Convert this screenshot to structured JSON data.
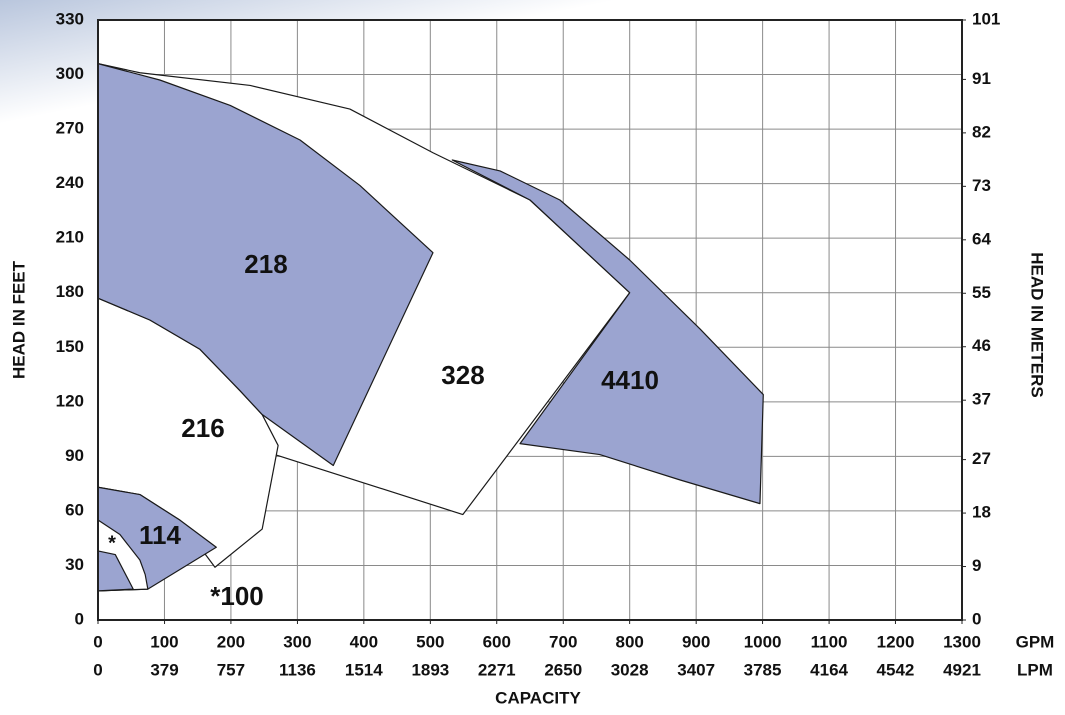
{
  "chart_data": {
    "type": "region",
    "xlabel": "CAPACITY",
    "ylabel": "HEAD IN FEET",
    "y2label": "HEAD IN METERS",
    "xunit": "GPM",
    "x2unit": "LPM",
    "xlim": [
      0,
      1300
    ],
    "xticks": [
      0,
      100,
      200,
      300,
      400,
      500,
      600,
      700,
      800,
      900,
      1000,
      1100,
      1200,
      1300
    ],
    "x2lim": [
      0,
      4921
    ],
    "x2ticks": [
      0,
      379,
      757,
      1136,
      1514,
      1893,
      2271,
      2650,
      3028,
      3407,
      3785,
      4164,
      4542,
      4921
    ],
    "ylim": [
      0,
      330
    ],
    "yticks": [
      0,
      30,
      60,
      90,
      120,
      150,
      180,
      210,
      240,
      270,
      300,
      330
    ],
    "y2lim": [
      0,
      101
    ],
    "y2ticks": [
      0,
      9,
      18,
      27,
      37,
      46,
      55,
      64,
      73,
      82,
      91,
      101
    ],
    "grid": true,
    "series": [
      {
        "name": "328",
        "color": "#ffffff",
        "x": [
          0,
          63,
          229,
          379,
          504,
          650,
          800,
          549,
          266,
          247
        ],
        "y": [
          306,
          301,
          294,
          281,
          257,
          231,
          180,
          58,
          91,
          113
        ]
      },
      {
        "name": "216",
        "color": "#ffffff",
        "x": [
          0,
          78,
          153,
          214,
          247,
          271,
          247,
          176,
          123,
          63,
          0
        ],
        "y": [
          177,
          165,
          149,
          126,
          113,
          96,
          50,
          29,
          55,
          69,
          73
        ]
      },
      {
        "name": "218",
        "color": "#9ba4d0",
        "x": [
          0,
          93,
          199,
          304,
          394,
          504,
          354,
          247,
          214,
          153,
          78,
          0
        ],
        "y": [
          306,
          297,
          283,
          264,
          239,
          202,
          85,
          113,
          126,
          149,
          165,
          177
        ]
      },
      {
        "name": "4410",
        "color": "#9ba4d0",
        "x": [
          533,
          605,
          695,
          800,
          906,
          1001,
          996,
          876,
          755,
          635,
          800,
          650
        ],
        "y": [
          253,
          247,
          231,
          198,
          160,
          124,
          64,
          77,
          91,
          97,
          180,
          231
        ]
      },
      {
        "name": "114",
        "color": "#9ba4d0",
        "x": [
          0,
          63,
          123,
          178,
          75,
          0
        ],
        "y": [
          73,
          69,
          55,
          40,
          17,
          16
        ]
      },
      {
        "name": "*",
        "color": "#ffffff",
        "x": [
          0,
          33,
          63,
          71,
          75,
          0
        ],
        "y": [
          55,
          47,
          33,
          25,
          17,
          16
        ]
      },
      {
        "name": "*100",
        "color": "#9ba4d0",
        "x": [
          0,
          26,
          53,
          0
        ],
        "y": [
          38,
          36,
          17,
          16
        ]
      }
    ]
  }
}
